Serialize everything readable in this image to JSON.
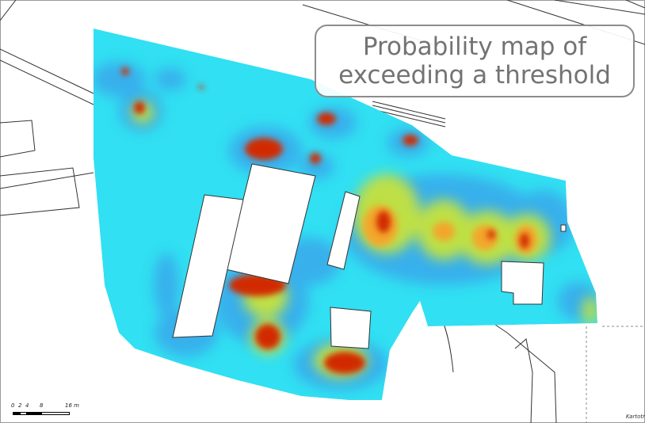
{
  "map": {
    "title_line1": "Probability map of",
    "title_line2": "exceeding a threshold",
    "scale_labels": [
      "0",
      "2",
      "4",
      "8",
      "16 m"
    ],
    "credit": "Kartotr",
    "colors": {
      "background": "#ffffff",
      "low": "#31e0f2",
      "low_mid": "#3aa0ea",
      "mid": "#c6e23c",
      "mid_high": "#f6c02c",
      "high": "#d22a00",
      "building": "#ffffff",
      "outline": "#333333",
      "title_border": "#8c8c8c",
      "title_text": "#737373"
    },
    "icons": {
      "scale": "scale-bar-icon"
    }
  }
}
